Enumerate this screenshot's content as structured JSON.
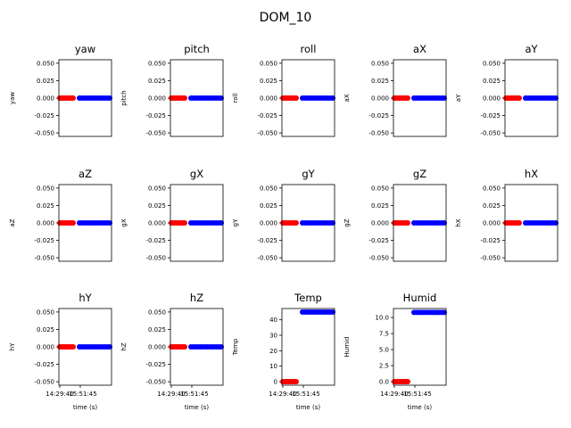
{
  "figure": {
    "title": "DOM_10"
  },
  "colors": {
    "early": "#ff0000",
    "late": "#0000ff",
    "axis": "#000000"
  },
  "chart_data": [
    {
      "name": "yaw",
      "type": "scatter",
      "title": "yaw",
      "ylabel": "yaw",
      "xlabel": "",
      "ylim": [
        -0.055,
        0.055
      ],
      "yticks": [
        "0.050",
        "0.025",
        "0.000",
        "-0.025",
        "-0.050"
      ],
      "ytick_values": [
        0.05,
        0.025,
        0,
        -0.025,
        -0.05
      ],
      "show_xticks": false,
      "xticks": [],
      "series": [
        {
          "name": "",
          "color": "red",
          "y_values": [
            0,
            0,
            0,
            0,
            0,
            0,
            0,
            0,
            0,
            0
          ]
        },
        {
          "name": "",
          "color": "blue",
          "y_values": [
            0,
            0,
            0,
            0,
            0,
            0,
            0,
            0,
            0,
            0,
            0,
            0,
            0,
            0
          ]
        }
      ]
    },
    {
      "name": "pitch",
      "type": "scatter",
      "title": "pitch",
      "ylabel": "pitch",
      "xlabel": "",
      "ylim": [
        -0.055,
        0.055
      ],
      "yticks": [
        "0.050",
        "0.025",
        "0.000",
        "-0.025",
        "-0.050"
      ],
      "ytick_values": [
        0.05,
        0.025,
        0,
        -0.025,
        -0.05
      ],
      "show_xticks": false,
      "xticks": [],
      "series": [
        {
          "name": "",
          "color": "red",
          "y_values": [
            0,
            0,
            0,
            0,
            0,
            0,
            0,
            0,
            0,
            0
          ]
        },
        {
          "name": "",
          "color": "blue",
          "y_values": [
            0,
            0,
            0,
            0,
            0,
            0,
            0,
            0,
            0,
            0,
            0,
            0,
            0,
            0
          ]
        }
      ]
    },
    {
      "name": "roll",
      "type": "scatter",
      "title": "roll",
      "ylabel": "roll",
      "xlabel": "",
      "ylim": [
        -0.055,
        0.055
      ],
      "yticks": [
        "0.050",
        "0.025",
        "0.000",
        "-0.025",
        "-0.050"
      ],
      "ytick_values": [
        0.05,
        0.025,
        0,
        -0.025,
        -0.05
      ],
      "show_xticks": false,
      "xticks": [],
      "series": [
        {
          "name": "",
          "color": "red",
          "y_values": [
            0,
            0,
            0,
            0,
            0,
            0,
            0,
            0,
            0,
            0
          ]
        },
        {
          "name": "",
          "color": "blue",
          "y_values": [
            0,
            0,
            0,
            0,
            0,
            0,
            0,
            0,
            0,
            0,
            0,
            0,
            0,
            0
          ]
        }
      ]
    },
    {
      "name": "aX",
      "type": "scatter",
      "title": "aX",
      "ylabel": "aX",
      "xlabel": "",
      "ylim": [
        -0.055,
        0.055
      ],
      "yticks": [
        "0.050",
        "0.025",
        "0.000",
        "-0.025",
        "-0.050"
      ],
      "ytick_values": [
        0.05,
        0.025,
        0,
        -0.025,
        -0.05
      ],
      "show_xticks": false,
      "xticks": [],
      "series": [
        {
          "name": "",
          "color": "red",
          "y_values": [
            0,
            0,
            0,
            0,
            0,
            0,
            0,
            0,
            0,
            0
          ]
        },
        {
          "name": "",
          "color": "blue",
          "y_values": [
            0,
            0,
            0,
            0,
            0,
            0,
            0,
            0,
            0,
            0,
            0,
            0,
            0,
            0
          ]
        }
      ]
    },
    {
      "name": "aY",
      "type": "scatter",
      "title": "aY",
      "ylabel": "aY",
      "xlabel": "",
      "ylim": [
        -0.055,
        0.055
      ],
      "yticks": [
        "0.050",
        "0.025",
        "0.000",
        "-0.025",
        "-0.050"
      ],
      "ytick_values": [
        0.05,
        0.025,
        0,
        -0.025,
        -0.05
      ],
      "show_xticks": false,
      "xticks": [],
      "series": [
        {
          "name": "",
          "color": "red",
          "y_values": [
            0,
            0,
            0,
            0,
            0,
            0,
            0,
            0,
            0,
            0
          ]
        },
        {
          "name": "",
          "color": "blue",
          "y_values": [
            0,
            0,
            0,
            0,
            0,
            0,
            0,
            0,
            0,
            0,
            0,
            0,
            0,
            0
          ]
        }
      ]
    },
    {
      "name": "aZ",
      "type": "scatter",
      "title": "aZ",
      "ylabel": "aZ",
      "xlabel": "",
      "ylim": [
        -0.055,
        0.055
      ],
      "yticks": [
        "0.050",
        "0.025",
        "0.000",
        "-0.025",
        "-0.050"
      ],
      "ytick_values": [
        0.05,
        0.025,
        0,
        -0.025,
        -0.05
      ],
      "show_xticks": false,
      "xticks": [],
      "series": [
        {
          "name": "",
          "color": "red",
          "y_values": [
            0,
            0,
            0,
            0,
            0,
            0,
            0,
            0,
            0,
            0
          ]
        },
        {
          "name": "",
          "color": "blue",
          "y_values": [
            0,
            0,
            0,
            0,
            0,
            0,
            0,
            0,
            0,
            0,
            0,
            0,
            0,
            0
          ]
        }
      ]
    },
    {
      "name": "gX",
      "type": "scatter",
      "title": "gX",
      "ylabel": "gX",
      "xlabel": "",
      "ylim": [
        -0.055,
        0.055
      ],
      "yticks": [
        "0.050",
        "0.025",
        "0.000",
        "-0.025",
        "-0.050"
      ],
      "ytick_values": [
        0.05,
        0.025,
        0,
        -0.025,
        -0.05
      ],
      "show_xticks": false,
      "xticks": [],
      "series": [
        {
          "name": "",
          "color": "red",
          "y_values": [
            0,
            0,
            0,
            0,
            0,
            0,
            0,
            0,
            0,
            0
          ]
        },
        {
          "name": "",
          "color": "blue",
          "y_values": [
            0,
            0,
            0,
            0,
            0,
            0,
            0,
            0,
            0,
            0,
            0,
            0,
            0,
            0
          ]
        }
      ]
    },
    {
      "name": "gY",
      "type": "scatter",
      "title": "gY",
      "ylabel": "gY",
      "xlabel": "",
      "ylim": [
        -0.055,
        0.055
      ],
      "yticks": [
        "0.050",
        "0.025",
        "0.000",
        "-0.025",
        "-0.050"
      ],
      "ytick_values": [
        0.05,
        0.025,
        0,
        -0.025,
        -0.05
      ],
      "show_xticks": false,
      "xticks": [],
      "series": [
        {
          "name": "",
          "color": "red",
          "y_values": [
            0,
            0,
            0,
            0,
            0,
            0,
            0,
            0,
            0,
            0
          ]
        },
        {
          "name": "",
          "color": "blue",
          "y_values": [
            0,
            0,
            0,
            0,
            0,
            0,
            0,
            0,
            0,
            0,
            0,
            0,
            0,
            0
          ]
        }
      ]
    },
    {
      "name": "gZ",
      "type": "scatter",
      "title": "gZ",
      "ylabel": "gZ",
      "xlabel": "",
      "ylim": [
        -0.055,
        0.055
      ],
      "yticks": [
        "0.050",
        "0.025",
        "0.000",
        "-0.025",
        "-0.050"
      ],
      "ytick_values": [
        0.05,
        0.025,
        0,
        -0.025,
        -0.05
      ],
      "show_xticks": false,
      "xticks": [],
      "series": [
        {
          "name": "",
          "color": "red",
          "y_values": [
            0,
            0,
            0,
            0,
            0,
            0,
            0,
            0,
            0,
            0
          ]
        },
        {
          "name": "",
          "color": "blue",
          "y_values": [
            0,
            0,
            0,
            0,
            0,
            0,
            0,
            0,
            0,
            0,
            0,
            0,
            0,
            0
          ]
        }
      ]
    },
    {
      "name": "hX",
      "type": "scatter",
      "title": "hX",
      "ylabel": "hX",
      "xlabel": "",
      "ylim": [
        -0.055,
        0.055
      ],
      "yticks": [
        "0.050",
        "0.025",
        "0.000",
        "-0.025",
        "-0.050"
      ],
      "ytick_values": [
        0.05,
        0.025,
        0,
        -0.025,
        -0.05
      ],
      "show_xticks": false,
      "xticks": [],
      "series": [
        {
          "name": "",
          "color": "red",
          "y_values": [
            0,
            0,
            0,
            0,
            0,
            0,
            0,
            0,
            0,
            0
          ]
        },
        {
          "name": "",
          "color": "blue",
          "y_values": [
            0,
            0,
            0,
            0,
            0,
            0,
            0,
            0,
            0,
            0,
            0,
            0,
            0,
            0
          ]
        }
      ]
    },
    {
      "name": "hY",
      "type": "scatter",
      "title": "hY",
      "ylabel": "hY",
      "xlabel": "time (s)",
      "ylim": [
        -0.055,
        0.055
      ],
      "yticks": [
        "0.050",
        "0.025",
        "0.000",
        "-0.025",
        "-0.050"
      ],
      "ytick_values": [
        0.05,
        0.025,
        0,
        -0.025,
        -0.05
      ],
      "show_xticks": true,
      "xticks": [
        "14:29:40",
        "15:51:45"
      ],
      "series": [
        {
          "name": "",
          "color": "red",
          "y_values": [
            0,
            0,
            0,
            0,
            0,
            0,
            0,
            0,
            0,
            0
          ]
        },
        {
          "name": "",
          "color": "blue",
          "y_values": [
            0,
            0,
            0,
            0,
            0,
            0,
            0,
            0,
            0,
            0,
            0,
            0,
            0,
            0
          ]
        }
      ]
    },
    {
      "name": "hZ",
      "type": "scatter",
      "title": "hZ",
      "ylabel": "hZ",
      "xlabel": "time (s)",
      "ylim": [
        -0.055,
        0.055
      ],
      "yticks": [
        "0.050",
        "0.025",
        "0.000",
        "-0.025",
        "-0.050"
      ],
      "ytick_values": [
        0.05,
        0.025,
        0,
        -0.025,
        -0.05
      ],
      "show_xticks": true,
      "xticks": [
        "14:29:40",
        "15:51:45"
      ],
      "series": [
        {
          "name": "",
          "color": "red",
          "y_values": [
            0,
            0,
            0,
            0,
            0,
            0,
            0,
            0,
            0,
            0
          ]
        },
        {
          "name": "",
          "color": "blue",
          "y_values": [
            0,
            0,
            0,
            0,
            0,
            0,
            0,
            0,
            0,
            0,
            0,
            0,
            0,
            0
          ]
        }
      ]
    },
    {
      "name": "Temp",
      "type": "scatter",
      "title": "Temp",
      "ylabel": "Temp",
      "xlabel": "time (s)",
      "ylim": [
        -2.3,
        47.3
      ],
      "yticks": [
        "40",
        "30",
        "20",
        "10",
        "0"
      ],
      "ytick_values": [
        40,
        30,
        20,
        10,
        0
      ],
      "show_xticks": true,
      "xticks": [
        "14:29:40",
        "15:51:45"
      ],
      "series": [
        {
          "name": "",
          "color": "red",
          "y_values": [
            0,
            0,
            0,
            0,
            0,
            0,
            0,
            0,
            0,
            0
          ]
        },
        {
          "name": "",
          "color": "blue",
          "y_values": [
            45,
            45,
            45,
            45,
            45,
            45,
            45,
            45,
            45,
            45,
            45,
            45,
            45,
            45
          ]
        }
      ]
    },
    {
      "name": "Humid",
      "type": "scatter",
      "title": "Humid",
      "ylabel": "Humid",
      "xlabel": "time (s)",
      "ylim": [
        -0.55,
        11.4
      ],
      "yticks": [
        "10.0",
        "7.5",
        "5.0",
        "2.5",
        "0.0"
      ],
      "ytick_values": [
        10,
        7.5,
        5,
        2.5,
        0
      ],
      "show_xticks": true,
      "xticks": [
        "14:29:40",
        "15:51:45"
      ],
      "series": [
        {
          "name": "",
          "color": "red",
          "y_values": [
            0,
            0,
            0,
            0,
            0,
            0,
            0,
            0,
            0,
            0
          ]
        },
        {
          "name": "",
          "color": "blue",
          "y_values": [
            10.8,
            10.8,
            10.8,
            10.8,
            10.8,
            10.8,
            10.8,
            10.8,
            10.8,
            10.8,
            10.8,
            10.8,
            10.8,
            10.8
          ]
        }
      ]
    }
  ]
}
